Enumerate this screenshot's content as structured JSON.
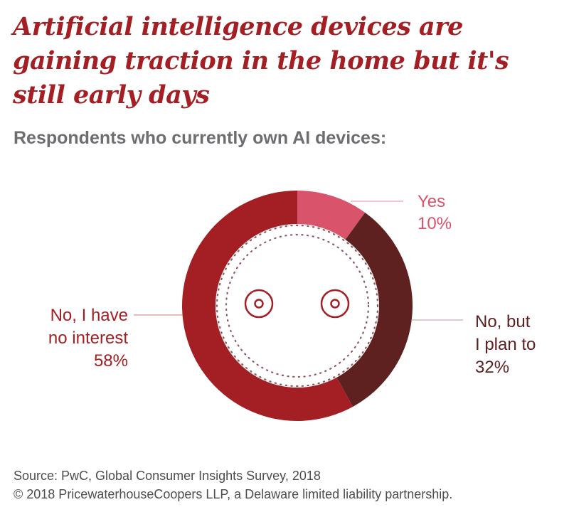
{
  "header": {
    "title": "Artificial intelligence devices are gaining traction in the home but it's still early days",
    "subtitle": "Respondents who currently own AI devices:"
  },
  "chart_data": {
    "type": "pie",
    "variant": "donut",
    "title": "Respondents who currently own AI devices:",
    "slices": [
      {
        "key": "yes",
        "label_lines": [
          "Yes",
          "10%"
        ],
        "name": "Yes",
        "value": 10,
        "color": "#d9536b"
      },
      {
        "key": "plan",
        "label_lines": [
          "No, but",
          "I plan to",
          "32%"
        ],
        "name": "No, but I plan to",
        "value": 32,
        "color": "#5f2120"
      },
      {
        "key": "no",
        "label_lines": [
          "No, I have",
          "no interest",
          "58%"
        ],
        "name": "No, I have no interest",
        "value": 58,
        "color": "#a31f23"
      }
    ],
    "center_icon": "smart-speaker-face-icon"
  },
  "footer": {
    "source": "Source: PwC, Global Consumer Insights Survey, 2018",
    "copyright": "© 2018 PricewaterhouseCoopers LLP, a Delaware limited liability partnership."
  }
}
